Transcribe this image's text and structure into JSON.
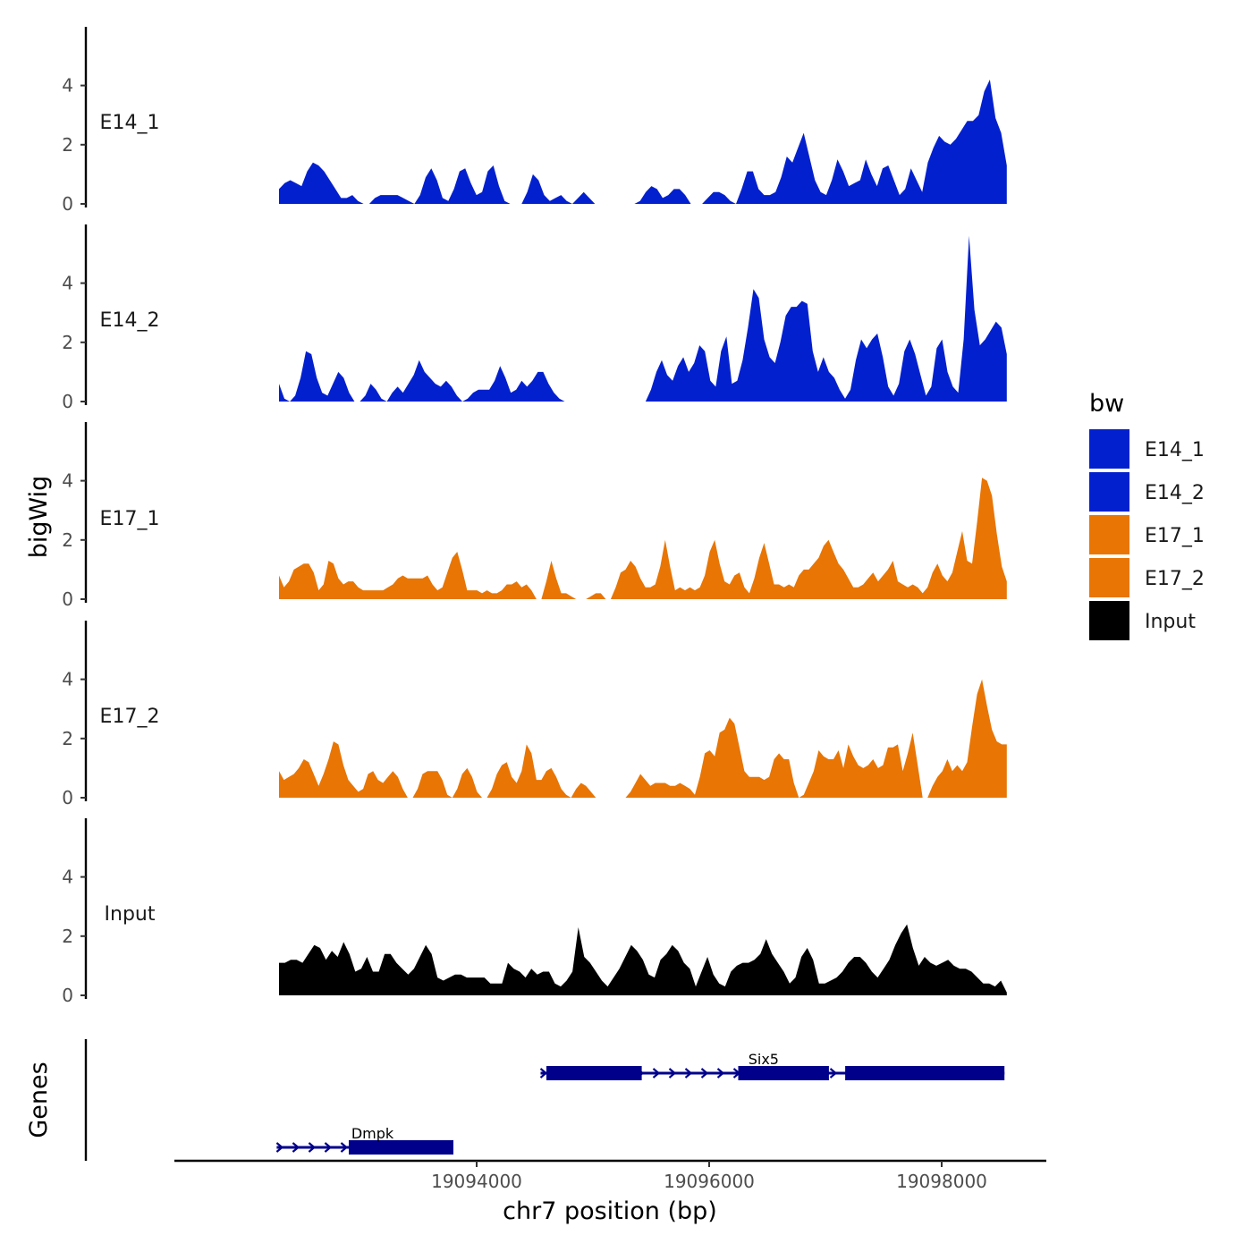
{
  "chart_data": {
    "type": "area",
    "title": "",
    "ylabel": "bigWig",
    "xlabel": "chr7 position (bp)",
    "gene_track_label": "Genes",
    "region": [
      19092300,
      19098560
    ],
    "xlim": [
      19091400,
      19098900
    ],
    "xticks": [
      19094000,
      19096000,
      19098000
    ],
    "xtick_labels": [
      "19094000",
      "19096000",
      "19098000"
    ],
    "ylim": [
      0,
      6
    ],
    "yticks": [
      0,
      2,
      4
    ],
    "ytick_labels": [
      "0",
      "2",
      "4"
    ],
    "legend": {
      "title": "bw",
      "entries": [
        {
          "label": "E14_1",
          "color": "#0320CE"
        },
        {
          "label": "E14_2",
          "color": "#0320CE"
        },
        {
          "label": "E17_1",
          "color": "#E87504"
        },
        {
          "label": "E17_2",
          "color": "#E87504"
        },
        {
          "label": "Input",
          "color": "#000000"
        }
      ]
    },
    "series": [
      {
        "name": "E14_1",
        "color": "#0320CE",
        "values": [
          0.5,
          0.7,
          0.8,
          0.7,
          0.6,
          1.1,
          1.4,
          1.3,
          1.1,
          0.8,
          0.5,
          0.2,
          0.2,
          0.3,
          0.1,
          0,
          0,
          0.2,
          0.3,
          0.3,
          0.3,
          0.3,
          0.2,
          0.1,
          0,
          0.3,
          0.9,
          1.2,
          0.8,
          0.2,
          0.1,
          0.5,
          1.1,
          1.2,
          0.7,
          0.3,
          0.4,
          1.1,
          1.3,
          0.6,
          0.1,
          0,
          0,
          0,
          0.4,
          1,
          0.8,
          0.3,
          0.1,
          0.2,
          0.3,
          0.1,
          0,
          0.2,
          0.4,
          0.2,
          0,
          0,
          0,
          0,
          0,
          0,
          0,
          0,
          0.1,
          0.4,
          0.6,
          0.5,
          0.2,
          0.3,
          0.5,
          0.5,
          0.3,
          0,
          0,
          0,
          0.2,
          0.4,
          0.4,
          0.3,
          0.1,
          0,
          0.5,
          1.1,
          1.1,
          0.5,
          0.3,
          0.3,
          0.4,
          0.9,
          1.6,
          1.4,
          1.9,
          2.4,
          1.6,
          0.8,
          0.4,
          0.3,
          0.8,
          1.5,
          1.1,
          0.6,
          0.7,
          0.8,
          1.5,
          1,
          0.6,
          1.2,
          1.3,
          0.8,
          0.3,
          0.5,
          1.2,
          0.8,
          0.4,
          1.4,
          1.9,
          2.3,
          2.1,
          2,
          2.2,
          2.5,
          2.8,
          2.8,
          3,
          3.8,
          4.2,
          2.9,
          2.4,
          1.3
        ]
      },
      {
        "name": "E14_2",
        "color": "#0320CE",
        "values": [
          0.6,
          0.1,
          0,
          0.2,
          0.8,
          1.7,
          1.6,
          0.8,
          0.3,
          0.2,
          0.6,
          1,
          0.8,
          0.3,
          0,
          0,
          0.2,
          0.6,
          0.4,
          0.1,
          0,
          0.3,
          0.5,
          0.3,
          0.6,
          0.9,
          1.4,
          1,
          0.8,
          0.6,
          0.5,
          0.7,
          0.5,
          0.2,
          0,
          0.1,
          0.3,
          0.4,
          0.4,
          0.4,
          0.7,
          1.2,
          0.8,
          0.3,
          0.4,
          0.7,
          0.5,
          0.7,
          1,
          1,
          0.6,
          0.3,
          0.1,
          0,
          0,
          0,
          0,
          0,
          0,
          0,
          0,
          0,
          0,
          0,
          0,
          0,
          0,
          0,
          0,
          0.4,
          1,
          1.4,
          0.9,
          0.7,
          1.2,
          1.5,
          1,
          1.3,
          1.9,
          1.7,
          0.7,
          0.5,
          1.7,
          2.2,
          0.6,
          0.7,
          1.4,
          2.5,
          3.8,
          3.5,
          2.1,
          1.5,
          1.3,
          2,
          2.9,
          3.2,
          3.2,
          3.4,
          3.3,
          1.7,
          1,
          1.5,
          1,
          0.8,
          0.4,
          0.1,
          0.4,
          1.4,
          2.1,
          1.8,
          2.1,
          2.3,
          1.5,
          0.5,
          0.2,
          0.6,
          1.7,
          2.1,
          1.6,
          0.9,
          0.2,
          0.5,
          1.8,
          2.1,
          1,
          0.5,
          0.3,
          2.1,
          5.6,
          3.1,
          1.9,
          2.1,
          2.4,
          2.7,
          2.5,
          1.6
        ]
      },
      {
        "name": "E17_1",
        "color": "#E87504",
        "values": [
          0.8,
          0.4,
          0.6,
          1,
          1.1,
          1.2,
          1.2,
          0.9,
          0.3,
          0.5,
          1.3,
          1.2,
          0.7,
          0.5,
          0.6,
          0.6,
          0.4,
          0.3,
          0.3,
          0.3,
          0.3,
          0.3,
          0.4,
          0.5,
          0.7,
          0.8,
          0.7,
          0.7,
          0.7,
          0.7,
          0.8,
          0.5,
          0.3,
          0.4,
          0.9,
          1.4,
          1.6,
          1,
          0.3,
          0.3,
          0.3,
          0.2,
          0.3,
          0.2,
          0.2,
          0.3,
          0.5,
          0.5,
          0.6,
          0.4,
          0.5,
          0.3,
          0,
          0,
          0.6,
          1.3,
          0.7,
          0.2,
          0.2,
          0.1,
          0,
          0,
          0,
          0.1,
          0.2,
          0.2,
          0,
          0,
          0.4,
          0.9,
          1,
          1.3,
          1.1,
          0.7,
          0.4,
          0.4,
          0.5,
          1.1,
          2,
          1.1,
          0.3,
          0.4,
          0.3,
          0.4,
          0.3,
          0.4,
          0.8,
          1.6,
          2,
          1.2,
          0.6,
          0.5,
          0.8,
          0.9,
          0.4,
          0.2,
          0.7,
          1.4,
          1.9,
          1.2,
          0.5,
          0.5,
          0.4,
          0.5,
          0.4,
          0.8,
          1,
          1,
          1.2,
          1.4,
          1.8,
          2,
          1.6,
          1.2,
          1,
          0.7,
          0.4,
          0.4,
          0.5,
          0.7,
          0.9,
          0.6,
          0.8,
          1,
          1.3,
          0.6,
          0.5,
          0.4,
          0.5,
          0.4,
          0.2,
          0.4,
          0.9,
          1.2,
          0.8,
          0.6,
          0.9,
          1.6,
          2.3,
          1.3,
          1.2,
          2.6,
          4.1,
          4,
          3.5,
          2.2,
          1.1,
          0.6
        ]
      },
      {
        "name": "E17_2",
        "color": "#E87504",
        "values": [
          0.9,
          0.6,
          0.7,
          0.8,
          1,
          1.3,
          1.2,
          0.8,
          0.4,
          0.8,
          1.3,
          1.9,
          1.8,
          1.1,
          0.6,
          0.4,
          0.2,
          0.3,
          0.8,
          0.9,
          0.6,
          0.5,
          0.7,
          0.9,
          0.7,
          0.3,
          0,
          0,
          0.3,
          0.8,
          0.9,
          0.9,
          0.9,
          0.6,
          0.1,
          0,
          0.3,
          0.8,
          1,
          0.7,
          0.2,
          0,
          0,
          0.3,
          0.8,
          1.1,
          1.2,
          0.7,
          0.5,
          0.9,
          1.8,
          1.5,
          0.6,
          0.6,
          0.9,
          1,
          0.7,
          0.3,
          0.1,
          0,
          0.3,
          0.5,
          0.4,
          0.2,
          0,
          0,
          0,
          0,
          0,
          0,
          0,
          0.2,
          0.5,
          0.8,
          0.6,
          0.4,
          0.5,
          0.5,
          0.5,
          0.4,
          0.4,
          0.5,
          0.4,
          0.3,
          0.1,
          0.7,
          1.5,
          1.6,
          1.4,
          2.2,
          2.3,
          2.7,
          2.5,
          1.7,
          0.9,
          0.7,
          0.7,
          0.7,
          0.6,
          0.7,
          1.3,
          1.5,
          1.3,
          1.3,
          0.5,
          0,
          0.1,
          0.5,
          0.9,
          1.6,
          1.4,
          1.3,
          1.3,
          1.6,
          1,
          1.8,
          1.4,
          1.1,
          1,
          1.1,
          1.3,
          1,
          1.1,
          1.7,
          1.7,
          1.8,
          0.9,
          1.5,
          2.2,
          1.1,
          0,
          0,
          0.4,
          0.7,
          0.9,
          1.3,
          0.9,
          1.1,
          0.9,
          1.2,
          2.4,
          3.5,
          4,
          3.1,
          2.3,
          1.9,
          1.8,
          1.8
        ]
      },
      {
        "name": "Input",
        "color": "#000000",
        "values": [
          1.1,
          1.1,
          1.2,
          1.2,
          1.1,
          1.4,
          1.7,
          1.6,
          1.2,
          1.5,
          1.3,
          1.8,
          1.4,
          0.8,
          0.9,
          1.3,
          0.8,
          0.8,
          1.4,
          1.4,
          1.1,
          0.9,
          0.7,
          0.9,
          1.3,
          1.7,
          1.4,
          0.6,
          0.5,
          0.6,
          0.7,
          0.7,
          0.6,
          0.6,
          0.6,
          0.6,
          0.4,
          0.4,
          0.4,
          1.1,
          0.9,
          0.8,
          0.6,
          0.9,
          0.7,
          0.8,
          0.8,
          0.4,
          0.3,
          0.5,
          0.8,
          2.3,
          1.3,
          1.1,
          0.8,
          0.5,
          0.3,
          0.6,
          0.9,
          1.3,
          1.7,
          1.5,
          1.2,
          0.7,
          0.6,
          1.2,
          1.4,
          1.7,
          1.5,
          1.1,
          0.9,
          0.3,
          0.8,
          1.3,
          0.7,
          0.4,
          0.3,
          0.8,
          1,
          1.1,
          1.1,
          1.2,
          1.4,
          1.9,
          1.4,
          1.1,
          0.8,
          0.4,
          0.6,
          1.3,
          1.6,
          1.2,
          0.4,
          0.4,
          0.5,
          0.6,
          0.8,
          1.1,
          1.3,
          1.3,
          1.1,
          0.8,
          0.6,
          0.9,
          1.2,
          1.7,
          2.1,
          2.4,
          1.6,
          1,
          1.3,
          1.1,
          1,
          1.1,
          1.2,
          1,
          0.9,
          0.9,
          0.8,
          0.6,
          0.4,
          0.4,
          0.3,
          0.5,
          0.1
        ]
      }
    ],
    "genes": [
      {
        "name": "Dmpk",
        "strand": "+",
        "start": 19092280,
        "end": 19093800,
        "exons": [
          [
            19092900,
            19093800
          ]
        ]
      },
      {
        "name": "Six5",
        "strand": "+",
        "start": 19094550,
        "end": 19098540,
        "exons": [
          [
            19094600,
            19095420
          ],
          [
            19096250,
            19097030
          ],
          [
            19097170,
            19098540
          ]
        ]
      }
    ]
  }
}
